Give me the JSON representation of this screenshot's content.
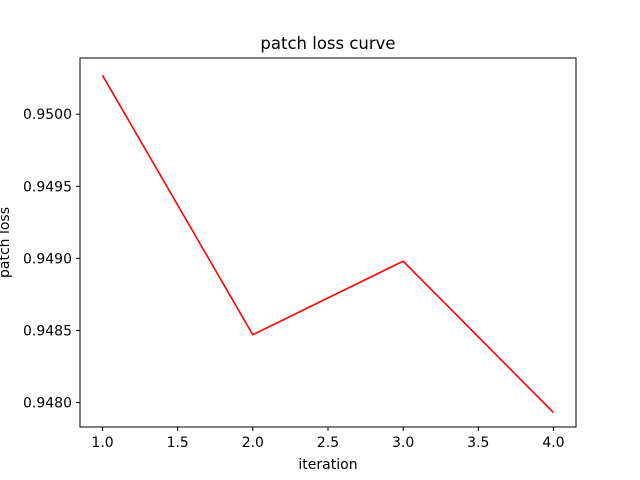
{
  "chart_data": {
    "type": "line",
    "title": "patch loss  curve",
    "xlabel": "iteration",
    "ylabel": "patch loss",
    "x": [
      1.0,
      2.0,
      3.0,
      4.0
    ],
    "series": [
      {
        "values": [
          0.95027,
          0.94847,
          0.94898,
          0.94793
        ],
        "color": "#ff0000"
      }
    ],
    "xlim": [
      0.85,
      4.15
    ],
    "ylim": [
      0.94783,
      0.95039
    ],
    "xticks": [
      1.0,
      1.5,
      2.0,
      2.5,
      3.0,
      3.5,
      4.0
    ],
    "xtick_labels": [
      "1.0",
      "1.5",
      "2.0",
      "2.5",
      "3.0",
      "3.5",
      "4.0"
    ],
    "yticks": [
      0.948,
      0.9485,
      0.949,
      0.9495,
      0.95
    ],
    "ytick_labels": [
      "0.9480",
      "0.9485",
      "0.9490",
      "0.9495",
      "0.9500"
    ],
    "grid": false,
    "legend": "none"
  }
}
